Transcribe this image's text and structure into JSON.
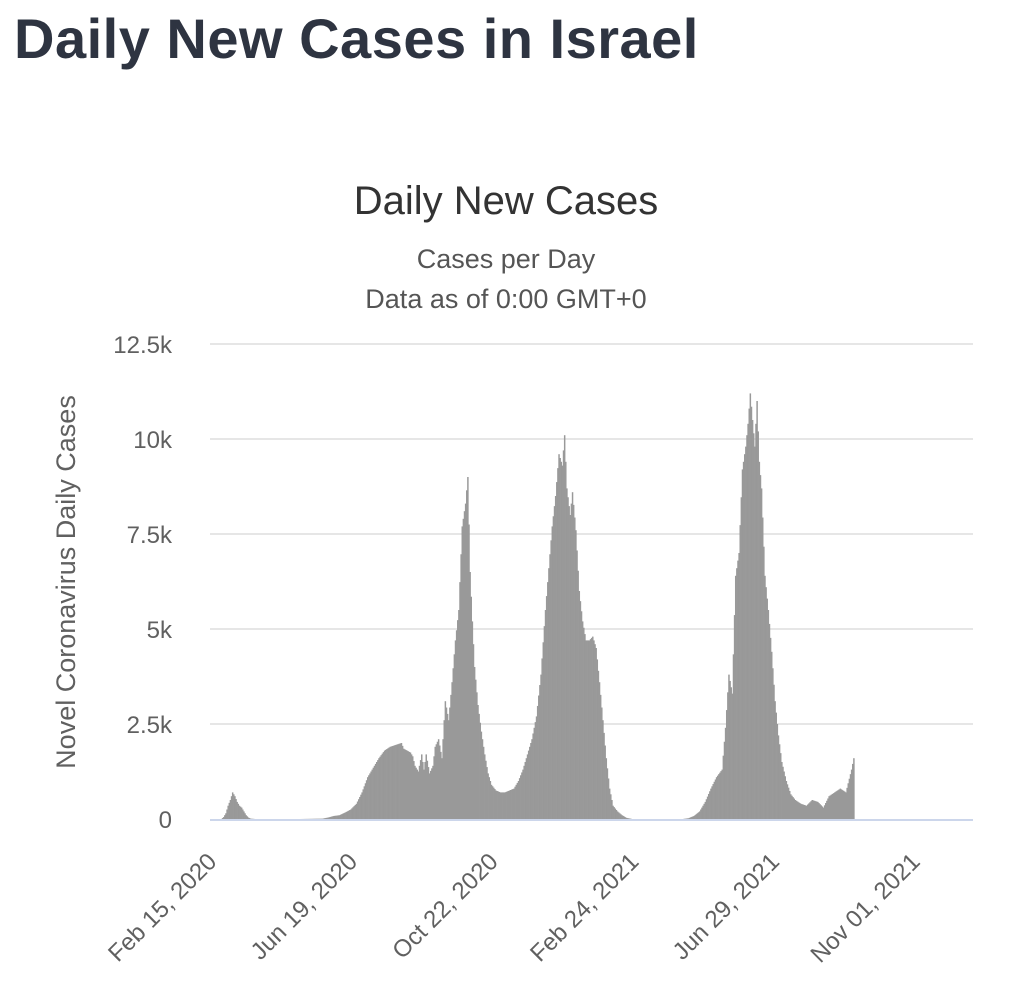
{
  "page": {
    "title": "Daily New Cases in Israel"
  },
  "chart_data": {
    "type": "bar",
    "title": "Daily New Cases",
    "subtitle": "Cases per Day",
    "subtitle2": "Data as of 0:00 GMT+0",
    "xlabel": "",
    "ylabel": "Novel Coronavirus Daily Cases",
    "ylim": [
      0,
      12500
    ],
    "grid": true,
    "legend": "none",
    "bar_color": "#999999",
    "grid_color": "#e6e6e6",
    "axis_color": "#ccd6eb",
    "y_ticks": [
      0,
      2500,
      5000,
      7500,
      10000,
      12500
    ],
    "y_tick_labels": [
      "0",
      "2.5k",
      "5k",
      "7.5k",
      "10k",
      "12.5k"
    ],
    "x_start": "2020-02-15",
    "x_end": "2021-12-24",
    "x_tick_labels": [
      "Feb 15, 2020",
      "Jun 19, 2020",
      "Oct 22, 2020",
      "Feb 24, 2021",
      "Jun 29, 2021",
      "Nov 01, 2021"
    ],
    "x_tick_days": [
      0,
      125,
      250,
      375,
      500,
      625
    ],
    "series": [
      {
        "name": "Daily Cases",
        "x_unit": "days since Feb 15, 2020",
        "points": [
          [
            0,
            0
          ],
          [
            10,
            0
          ],
          [
            12,
            50
          ],
          [
            14,
            150
          ],
          [
            16,
            350
          ],
          [
            18,
            500
          ],
          [
            20,
            700
          ],
          [
            22,
            600
          ],
          [
            24,
            450
          ],
          [
            26,
            350
          ],
          [
            28,
            300
          ],
          [
            30,
            200
          ],
          [
            32,
            100
          ],
          [
            34,
            40
          ],
          [
            36,
            10
          ],
          [
            40,
            0
          ],
          [
            60,
            0
          ],
          [
            75,
            0
          ],
          [
            80,
            0
          ],
          [
            90,
            5
          ],
          [
            100,
            10
          ],
          [
            105,
            40
          ],
          [
            110,
            80
          ],
          [
            115,
            100
          ],
          [
            120,
            170
          ],
          [
            125,
            250
          ],
          [
            130,
            400
          ],
          [
            135,
            700
          ],
          [
            140,
            1100
          ],
          [
            145,
            1350
          ],
          [
            150,
            1600
          ],
          [
            155,
            1800
          ],
          [
            160,
            1900
          ],
          [
            165,
            1950
          ],
          [
            170,
            2000
          ],
          [
            172,
            1850
          ],
          [
            175,
            1800
          ],
          [
            178,
            1750
          ],
          [
            180,
            1650
          ],
          [
            182,
            1400
          ],
          [
            185,
            1250
          ],
          [
            188,
            1700
          ],
          [
            190,
            1300
          ],
          [
            192,
            1700
          ],
          [
            195,
            1200
          ],
          [
            198,
            1400
          ],
          [
            200,
            1900
          ],
          [
            203,
            2100
          ],
          [
            206,
            1600
          ],
          [
            209,
            3100
          ],
          [
            212,
            2600
          ],
          [
            215,
            3600
          ],
          [
            218,
            4700
          ],
          [
            221,
            5500
          ],
          [
            224,
            7700
          ],
          [
            227,
            8300
          ],
          [
            229,
            9000
          ],
          [
            231,
            6500
          ],
          [
            233,
            5200
          ],
          [
            235,
            4000
          ],
          [
            238,
            3000
          ],
          [
            241,
            2300
          ],
          [
            244,
            1700
          ],
          [
            247,
            1200
          ],
          [
            250,
            900
          ],
          [
            254,
            750
          ],
          [
            258,
            700
          ],
          [
            262,
            700
          ],
          [
            266,
            750
          ],
          [
            270,
            800
          ],
          [
            274,
            1000
          ],
          [
            278,
            1300
          ],
          [
            282,
            1700
          ],
          [
            286,
            2100
          ],
          [
            290,
            2700
          ],
          [
            294,
            3800
          ],
          [
            298,
            5500
          ],
          [
            301,
            6600
          ],
          [
            304,
            7700
          ],
          [
            307,
            8500
          ],
          [
            310,
            9600
          ],
          [
            313,
            9300
          ],
          [
            315,
            10100
          ],
          [
            317,
            8700
          ],
          [
            320,
            8000
          ],
          [
            322,
            8600
          ],
          [
            325,
            7600
          ],
          [
            328,
            6000
          ],
          [
            331,
            5200
          ],
          [
            334,
            4700
          ],
          [
            337,
            4700
          ],
          [
            340,
            4800
          ],
          [
            343,
            4500
          ],
          [
            346,
            3600
          ],
          [
            349,
            2600
          ],
          [
            352,
            1600
          ],
          [
            355,
            800
          ],
          [
            358,
            350
          ],
          [
            362,
            200
          ],
          [
            366,
            100
          ],
          [
            370,
            30
          ],
          [
            375,
            0
          ],
          [
            420,
            0
          ],
          [
            425,
            20
          ],
          [
            430,
            80
          ],
          [
            435,
            200
          ],
          [
            440,
            450
          ],
          [
            445,
            800
          ],
          [
            450,
            1100
          ],
          [
            455,
            1300
          ],
          [
            458,
            2400
          ],
          [
            461,
            3800
          ],
          [
            464,
            3300
          ],
          [
            467,
            6400
          ],
          [
            470,
            7000
          ],
          [
            473,
            9200
          ],
          [
            476,
            9800
          ],
          [
            478,
            10400
          ],
          [
            480,
            11200
          ],
          [
            482,
            10500
          ],
          [
            484,
            9800
          ],
          [
            486,
            11000
          ],
          [
            488,
            9400
          ],
          [
            490,
            8700
          ],
          [
            493,
            6400
          ],
          [
            496,
            5500
          ],
          [
            499,
            4400
          ],
          [
            502,
            3100
          ],
          [
            505,
            2200
          ],
          [
            508,
            1500
          ],
          [
            512,
            1000
          ],
          [
            516,
            650
          ],
          [
            520,
            500
          ],
          [
            525,
            400
          ],
          [
            530,
            350
          ],
          [
            535,
            500
          ],
          [
            540,
            450
          ],
          [
            545,
            300
          ],
          [
            550,
            600
          ],
          [
            555,
            700
          ],
          [
            560,
            800
          ],
          [
            565,
            700
          ],
          [
            570,
            1300
          ],
          [
            572,
            1600
          ]
        ]
      }
    ]
  }
}
